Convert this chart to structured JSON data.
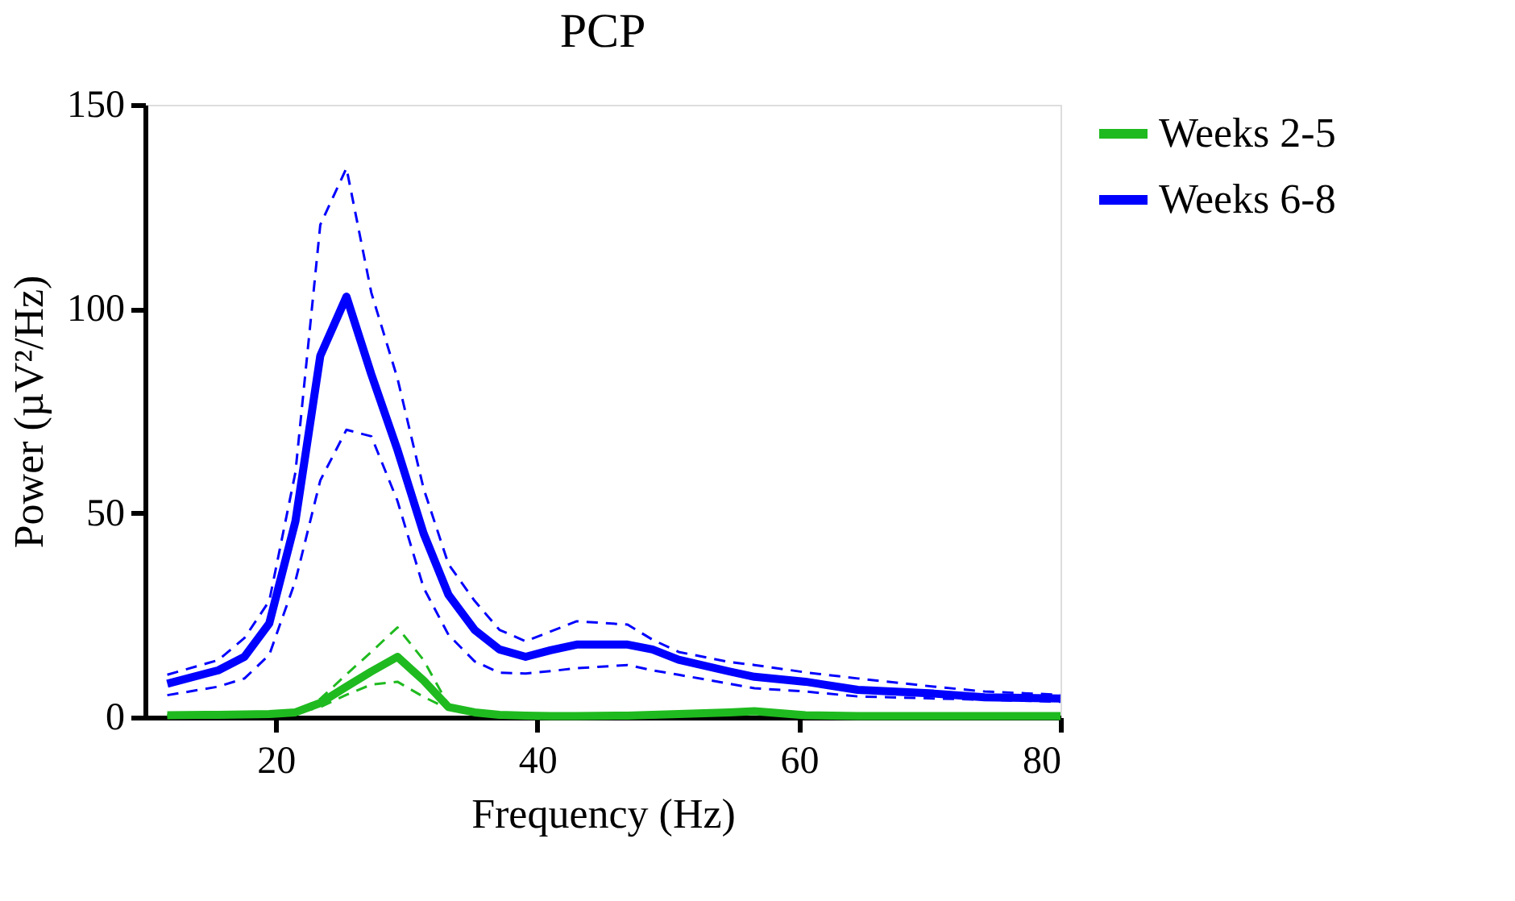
{
  "chart_data": {
    "type": "line",
    "title": "PCP",
    "xlabel": "Frequency (Hz)",
    "ylabel": "Power (µV²/Hz)",
    "x": [
      11.7,
      15.6,
      17.6,
      19.5,
      21.5,
      23.4,
      25.4,
      27.3,
      29.3,
      31.3,
      33.2,
      35.2,
      37.1,
      39.1,
      41.0,
      43.0,
      46.9,
      48.8,
      50.8,
      54.7,
      56.6,
      60.5,
      64.5,
      70.3,
      74.2,
      80
    ],
    "series": [
      {
        "name": "Weeks 2-5",
        "color": "#1fba1f",
        "values": [
          0.5,
          0.6,
          0.7,
          0.8,
          1.2,
          3.5,
          7.5,
          11.2,
          14.8,
          9,
          2.5,
          1.2,
          0.6,
          0.4,
          0.3,
          0.3,
          0.4,
          0.6,
          0.8,
          1.2,
          1.5,
          0.5,
          0.3,
          0.3,
          0.3,
          0.3
        ]
      },
      {
        "name": "Weeks 6-8",
        "color": "#0000ff",
        "values": [
          8.2,
          11.5,
          14.8,
          23,
          48,
          88.5,
          103,
          84,
          65.5,
          45,
          30,
          21.4,
          16.6,
          14.8,
          16.4,
          17.8,
          17.8,
          16.6,
          14.1,
          11.2,
          9.9,
          8.7,
          6.7,
          5.8,
          4.9,
          4.6
        ]
      },
      {
        "color": "#1fba1f",
        "line_style": "dashed",
        "values": [
          0.6,
          0.7,
          0.8,
          0.9,
          1.4,
          4.5,
          10.5,
          16,
          22,
          14,
          3,
          1.4,
          0.7,
          0.5,
          0.4,
          0.4,
          0.5,
          0.7,
          0.9,
          1.4,
          1.8,
          0.6,
          0.4,
          0.4,
          0.4,
          0.4
        ]
      },
      {
        "color": "#1fba1f",
        "line_style": "dashed",
        "values": [
          0.4,
          0.5,
          0.6,
          0.7,
          1,
          2.5,
          5.5,
          8,
          8.7,
          5,
          2,
          1,
          0.5,
          0.3,
          0.2,
          0.2,
          0.3,
          0.5,
          0.7,
          1,
          1.2,
          0.4,
          0.2,
          0.2,
          0.2,
          0.2
        ]
      },
      {
        "color": "#0000ff",
        "line_style": "dashed",
        "values": [
          10.4,
          14,
          19.4,
          28.5,
          60,
          120.6,
          134.5,
          104,
          83,
          56,
          37.5,
          28.5,
          21.4,
          18.6,
          21,
          23.5,
          22.7,
          19,
          16,
          13.5,
          12.8,
          11,
          9.5,
          7.5,
          6.3,
          5.5
        ]
      },
      {
        "color": "#0000ff",
        "line_style": "dashed",
        "values": [
          5.4,
          7.5,
          9.5,
          15.3,
          33.4,
          58,
          70.4,
          68.8,
          53,
          31.7,
          20.2,
          13.7,
          10.9,
          10.7,
          11.3,
          12,
          12.8,
          11.5,
          10.4,
          8.2,
          7.1,
          6.3,
          5.1,
          4.6,
          4.3,
          3.8
        ]
      }
    ],
    "xlim": [
      10,
      80
    ],
    "xticks": [
      20,
      40,
      60,
      80
    ],
    "ylim": [
      0,
      150
    ],
    "yticks": [
      0,
      50,
      100,
      150
    ],
    "grid": false,
    "legend": "right",
    "marker": "none",
    "line_style": "solid"
  }
}
